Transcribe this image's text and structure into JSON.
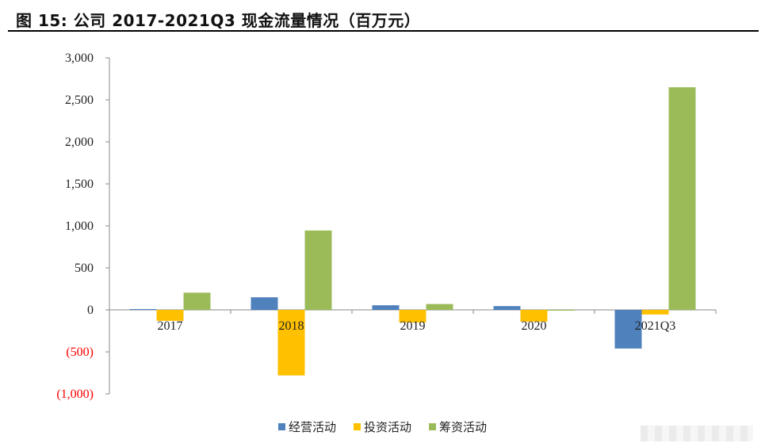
{
  "title": "图 15: 公司 2017-2021Q3 现金流量情况（百万元）",
  "chart_data": {
    "type": "bar",
    "categories": [
      "2017",
      "2018",
      "2019",
      "2020",
      "2021Q3"
    ],
    "series": [
      {
        "name": "经营活动",
        "color": "#4F81BD",
        "values": [
          10,
          150,
          55,
          45,
          -460
        ]
      },
      {
        "name": "投资活动",
        "color": "#FFC000",
        "values": [
          -130,
          -780,
          -150,
          -140,
          -55
        ]
      },
      {
        "name": "筹资活动",
        "color": "#9BBB59",
        "values": [
          205,
          945,
          70,
          -5,
          2650
        ]
      }
    ],
    "ylim": [
      -1000,
      3000
    ],
    "yticks": [
      3000,
      2500,
      2000,
      1500,
      1000,
      500,
      0,
      -500,
      -1000
    ],
    "ytick_labels": [
      "3,000",
      "2,500",
      "2,000",
      "1,500",
      "1,000",
      "500",
      "0",
      "(500)",
      "(1,000)"
    ],
    "negative_tick_color": "#FF0000",
    "legend_position": "bottom",
    "grid": false
  }
}
